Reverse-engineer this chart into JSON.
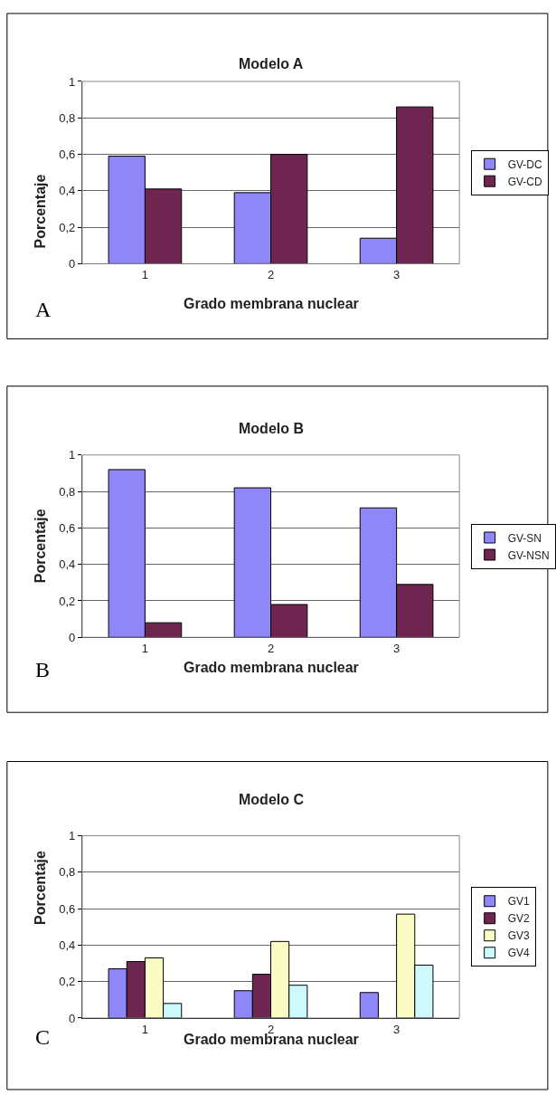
{
  "chart_data": [
    {
      "type": "bar",
      "title": "Modelo A",
      "xlabel": "Grado membrana nuclear",
      "ylabel": "Porcentaje",
      "categories": [
        "1",
        "2",
        "3"
      ],
      "series": [
        {
          "name": "GV-DC",
          "color": "#8f86f7",
          "values": [
            0.59,
            0.39,
            0.14
          ]
        },
        {
          "name": "GV-CD",
          "color": "#6e2550",
          "values": [
            0.41,
            0.6,
            0.86
          ]
        }
      ],
      "ylim": [
        0,
        1
      ],
      "yticks": [
        0,
        {
          "value": 0.2,
          "label": "0,2"
        },
        {
          "value": 0.4,
          "label": "0,4"
        },
        {
          "value": 0.6,
          "label": "0,6"
        },
        {
          "value": 0.8,
          "label": "0,8"
        },
        1
      ],
      "grid": "y",
      "legend": "right",
      "annotations": [
        "A"
      ]
    },
    {
      "type": "bar",
      "title": "Modelo B",
      "xlabel": "Grado membrana nuclear",
      "ylabel": "Porcentaje",
      "categories": [
        "1",
        "2",
        "3"
      ],
      "series": [
        {
          "name": "GV-SN",
          "color": "#8f86f7",
          "values": [
            0.92,
            0.82,
            0.71
          ]
        },
        {
          "name": "GV-NSN",
          "color": "#6e2550",
          "values": [
            0.08,
            0.18,
            0.29
          ]
        }
      ],
      "ylim": [
        0,
        1
      ],
      "yticks": [
        0,
        {
          "value": 0.2,
          "label": "0,2"
        },
        {
          "value": 0.4,
          "label": "0,4"
        },
        {
          "value": 0.6,
          "label": "0,6"
        },
        {
          "value": 0.8,
          "label": "0,8"
        },
        1
      ],
      "grid": "y",
      "legend": "right",
      "annotations": [
        "B"
      ]
    },
    {
      "type": "bar",
      "title": "Modelo C",
      "xlabel": "Grado membrana nuclear",
      "ylabel": "Porcentaje",
      "categories": [
        "1",
        "2",
        "3"
      ],
      "series": [
        {
          "name": "GV1",
          "color": "#8f86f7",
          "values": [
            0.27,
            0.15,
            0.14
          ]
        },
        {
          "name": "GV2",
          "color": "#6e2550",
          "values": [
            0.31,
            0.24,
            null
          ]
        },
        {
          "name": "GV3",
          "color": "#fafcc4",
          "values": [
            0.33,
            0.42,
            0.57
          ]
        },
        {
          "name": "GV4",
          "color": "#ccfafc",
          "values": [
            0.08,
            0.18,
            0.29
          ]
        }
      ],
      "ylim": [
        0,
        1
      ],
      "yticks": [
        0,
        {
          "value": 0.2,
          "label": "0,2"
        },
        {
          "value": 0.4,
          "label": "0,4"
        },
        {
          "value": 0.6,
          "label": "0,6"
        },
        {
          "value": 0.8,
          "label": "0,8"
        },
        1
      ],
      "grid": "y",
      "legend": "right",
      "annotations": [
        "C"
      ]
    }
  ]
}
